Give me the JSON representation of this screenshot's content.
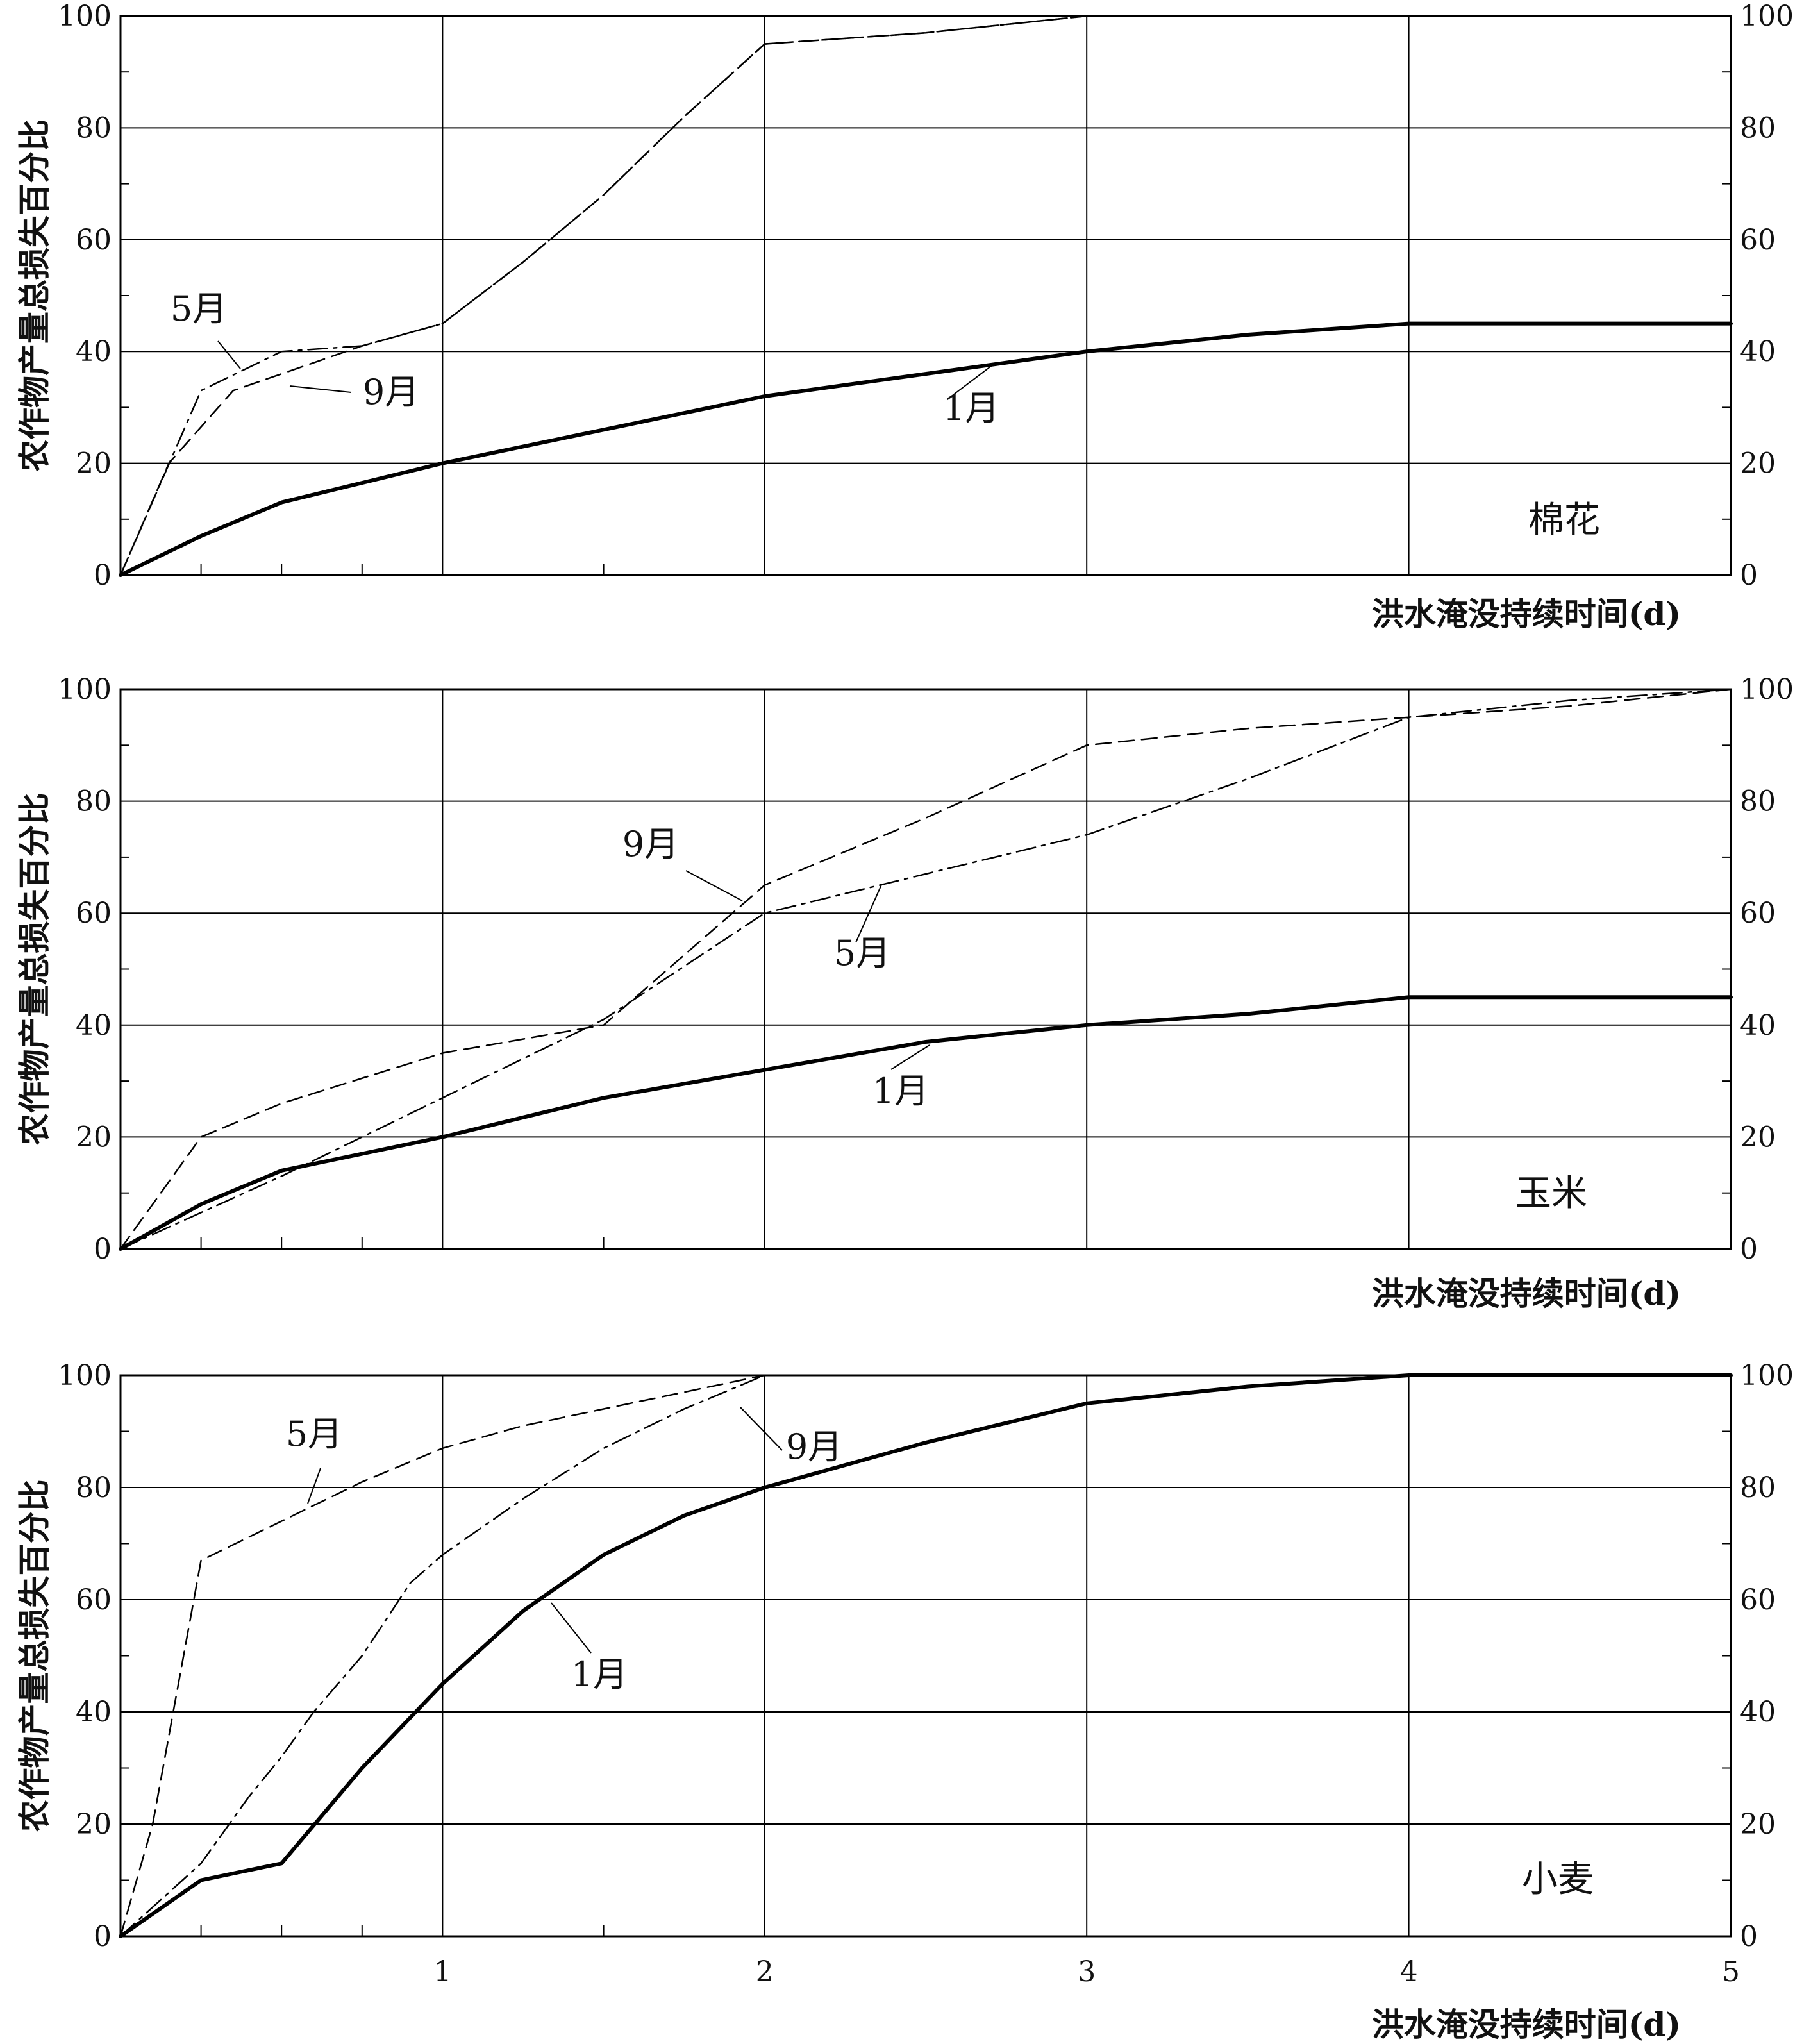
{
  "y_axis_title": "农作物产量总损失百分比",
  "x_axis_title": "洪水淹没持续时间(d)",
  "chart_data": [
    {
      "type": "line",
      "title": "棉花",
      "xlabel": "洪水淹没持续时间(d)",
      "ylabel": "农作物产量总损失百分比",
      "xlim": [
        0,
        5
      ],
      "ylim": [
        0,
        100
      ],
      "x_ticks": [],
      "y_ticks": [
        "0",
        "20",
        "40",
        "60",
        "80",
        "100"
      ],
      "grid": true,
      "series": [
        {
          "name": "5月",
          "style": "dash-dot",
          "x": [
            0,
            0.25,
            0.5,
            0.75,
            1.0,
            1.25,
            1.5,
            1.75,
            2.0,
            2.5,
            3.0
          ],
          "y": [
            0,
            33,
            40,
            41,
            45,
            56,
            68,
            82,
            95,
            97,
            100
          ]
        },
        {
          "name": "9月",
          "style": "dashed",
          "x": [
            0,
            0.15,
            0.35,
            0.5,
            0.75,
            1.0,
            1.25,
            1.5,
            1.75,
            2.0,
            2.5,
            3.0
          ],
          "y": [
            0,
            20,
            33,
            36,
            41,
            45,
            56,
            68,
            82,
            95,
            97,
            100
          ]
        },
        {
          "name": "1月",
          "style": "solid",
          "x": [
            0,
            0.25,
            0.5,
            1.0,
            1.5,
            2.0,
            2.5,
            3.0,
            3.5,
            4.0,
            4.5,
            5.0
          ],
          "y": [
            0,
            7,
            13,
            20,
            26,
            32,
            36,
            40,
            43,
            45,
            45,
            45
          ]
        }
      ]
    },
    {
      "type": "line",
      "title": "玉米",
      "xlabel": "洪水淹没持续时间(d)",
      "ylabel": "农作物产量总损失百分比",
      "xlim": [
        0,
        5
      ],
      "ylim": [
        0,
        100
      ],
      "x_ticks": [],
      "y_ticks": [
        "0",
        "20",
        "40",
        "60",
        "80",
        "100"
      ],
      "grid": true,
      "series": [
        {
          "name": "9月",
          "style": "dashed",
          "x": [
            0,
            0.25,
            0.5,
            1.0,
            1.5,
            2.0,
            2.5,
            3.0,
            3.5,
            4.0,
            4.5,
            5.0
          ],
          "y": [
            0,
            20,
            26,
            35,
            40,
            65,
            77,
            90,
            93,
            95,
            97,
            100
          ]
        },
        {
          "name": "5月",
          "style": "dash-dot",
          "x": [
            0,
            0.5,
            1.0,
            1.5,
            2.0,
            2.5,
            3.0,
            3.5,
            4.0,
            4.5,
            5.0
          ],
          "y": [
            0,
            13,
            27,
            41,
            60,
            67,
            74,
            84,
            95,
            98,
            100
          ]
        },
        {
          "name": "1月",
          "style": "solid",
          "x": [
            0,
            0.25,
            0.5,
            1.0,
            1.5,
            2.0,
            2.5,
            3.0,
            3.5,
            4.0,
            4.5,
            5.0
          ],
          "y": [
            0,
            8,
            14,
            20,
            27,
            32,
            37,
            40,
            42,
            45,
            45,
            45
          ]
        }
      ]
    },
    {
      "type": "line",
      "title": "小麦",
      "xlabel": "洪水淹没持续时间(d)",
      "ylabel": "农作物产量总损失百分比",
      "xlim": [
        0,
        5
      ],
      "ylim": [
        0,
        100
      ],
      "x_ticks": [
        "1",
        "2",
        "3",
        "4",
        "5"
      ],
      "y_ticks": [
        "0",
        "20",
        "40",
        "60",
        "80",
        "100"
      ],
      "grid": true,
      "series": [
        {
          "name": "5月",
          "style": "dashed",
          "x": [
            0,
            0.1,
            0.25,
            0.5,
            0.75,
            1.0,
            1.25,
            1.5,
            1.75,
            2.0,
            2.1
          ],
          "y": [
            0,
            20,
            67,
            74,
            81,
            87,
            91,
            94,
            97,
            100,
            100
          ]
        },
        {
          "name": "9月",
          "style": "dash-dot",
          "x": [
            0,
            0.25,
            0.4,
            0.5,
            0.6,
            0.75,
            0.9,
            1.0,
            1.25,
            1.5,
            1.75,
            2.0,
            2.05
          ],
          "y": [
            0,
            13,
            25,
            32,
            40,
            50,
            63,
            68,
            78,
            87,
            94,
            100,
            100
          ]
        },
        {
          "name": "1月",
          "style": "solid",
          "x": [
            0,
            0.25,
            0.5,
            0.75,
            1.0,
            1.25,
            1.5,
            1.75,
            2.0,
            2.5,
            3.0,
            3.5,
            4.0,
            4.5,
            5.0
          ],
          "y": [
            0,
            10,
            13,
            30,
            45,
            58,
            68,
            75,
            80,
            88,
            95,
            98,
            100,
            100,
            100
          ]
        }
      ]
    }
  ]
}
